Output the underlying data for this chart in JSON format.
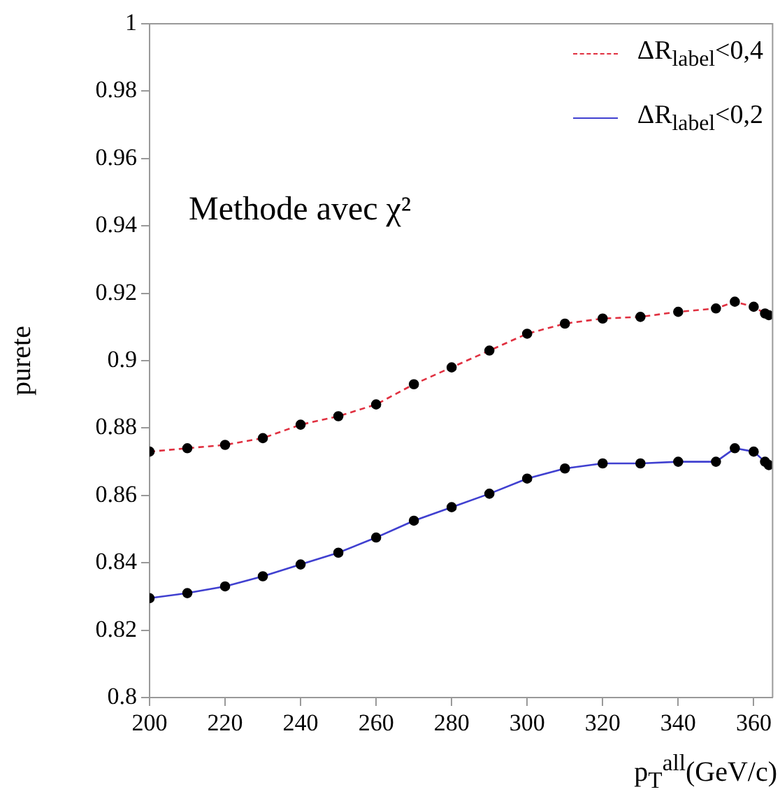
{
  "chart_data": {
    "type": "line",
    "ylabel": "purete",
    "xlabel": "p$_{T}$$^{all}$(GeV/c)",
    "annotations": [
      "Methode avec χ²"
    ],
    "x": [
      200,
      210,
      220,
      230,
      240,
      250,
      260,
      270,
      280,
      290,
      300,
      310,
      320,
      330,
      340,
      350,
      355,
      360,
      363,
      364
    ],
    "series": [
      {
        "name": "ΔR$_{label}$<0,4",
        "color": "#e03040",
        "line_style": "dashed",
        "values": [
          0.873,
          0.874,
          0.875,
          0.877,
          0.881,
          0.8835,
          0.887,
          0.893,
          0.898,
          0.903,
          0.908,
          0.911,
          0.9125,
          0.913,
          0.9145,
          0.9155,
          0.9175,
          0.916,
          0.914,
          0.9135
        ]
      },
      {
        "name": "ΔR$_{label}$<0,2",
        "color": "#4040d0",
        "line_style": "solid",
        "values": [
          0.8295,
          0.831,
          0.833,
          0.836,
          0.8395,
          0.843,
          0.8475,
          0.8525,
          0.8565,
          0.8605,
          0.865,
          0.868,
          0.8695,
          0.8695,
          0.87,
          0.87,
          0.874,
          0.873,
          0.87,
          0.869
        ]
      }
    ],
    "xlim": [
      200,
      365
    ],
    "xticks": [
      200,
      220,
      240,
      260,
      280,
      300,
      320,
      340,
      360
    ],
    "ylim": [
      0.8,
      1
    ],
    "yticks": [
      0.8,
      0.82,
      0.84,
      0.86,
      0.88,
      0.9,
      0.92,
      0.94,
      0.96,
      0.98,
      1
    ],
    "grid": false,
    "legend": "top right",
    "marker": "circle"
  }
}
